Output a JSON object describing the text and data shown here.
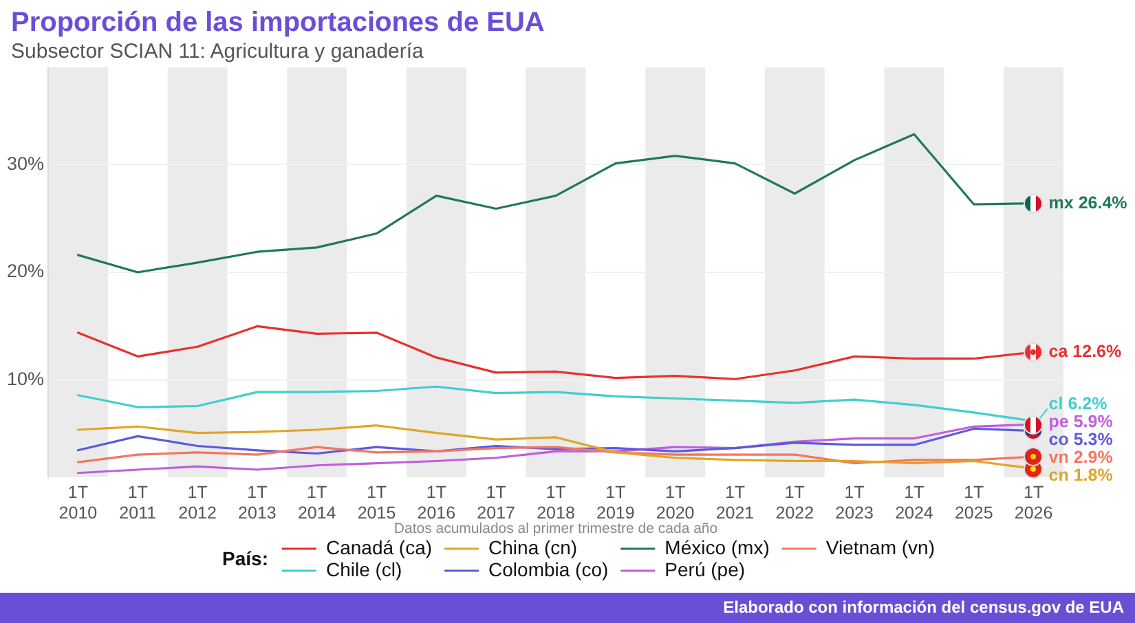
{
  "chart_data": {
    "type": "line",
    "title": "Proporción de las importaciones de EUA",
    "subtitle": "Subsector SCIAN 11: Agricultura y ganadería",
    "xlabel": "Datos acumulados al primer trimestre de cada año",
    "legend_title": "País:",
    "legend": "bottom",
    "grid": "y",
    "categories": [
      "1T\n2010",
      "1T\n2011",
      "1T\n2012",
      "1T\n2013",
      "1T\n2014",
      "1T\n2015",
      "1T\n2016",
      "1T\n2017",
      "1T\n2018",
      "1T\n2019",
      "1T\n2020",
      "1T\n2021",
      "1T\n2022",
      "1T\n2023",
      "1T\n2024",
      "1T\n2025",
      "1T\n2026"
    ],
    "ylim": [
      1,
      39
    ],
    "yticks": [
      {
        "value": 10,
        "label": "10%"
      },
      {
        "value": 20,
        "label": "20%"
      },
      {
        "value": 30,
        "label": "30%"
      }
    ],
    "bands": [
      {
        "axis": "x",
        "from": "1T\n2010",
        "to": "1T\n2010",
        "color": "#ebebeb"
      },
      {
        "axis": "x",
        "from": "1T\n2012",
        "to": "1T\n2012",
        "color": "#ebebeb"
      },
      {
        "axis": "x",
        "from": "1T\n2014",
        "to": "1T\n2014",
        "color": "#ebebeb"
      },
      {
        "axis": "x",
        "from": "1T\n2016",
        "to": "1T\n2016",
        "color": "#ebebeb"
      },
      {
        "axis": "x",
        "from": "1T\n2018",
        "to": "1T\n2018",
        "color": "#ebebeb"
      },
      {
        "axis": "x",
        "from": "1T\n2020",
        "to": "1T\n2020",
        "color": "#ebebeb"
      },
      {
        "axis": "x",
        "from": "1T\n2022",
        "to": "1T\n2022",
        "color": "#ebebeb"
      },
      {
        "axis": "x",
        "from": "1T\n2024",
        "to": "1T\n2024",
        "color": "#ebebeb"
      },
      {
        "axis": "x",
        "from": "1T\n2026",
        "to": "1T\n2026",
        "color": "#ebebeb"
      }
    ],
    "series": [
      {
        "name": "Canadá (ca)",
        "color": "#e8312f",
        "values": [
          14.4,
          12.2,
          13.1,
          15.0,
          14.3,
          14.4,
          12.1,
          10.7,
          10.8,
          10.2,
          10.4,
          10.1,
          10.9,
          12.2,
          12.0,
          12.0,
          12.6
        ],
        "value_labels": [
          null,
          null,
          null,
          null,
          null,
          null,
          null,
          null,
          null,
          null,
          null,
          null,
          null,
          null,
          null,
          null,
          "ca 12.6%"
        ]
      },
      {
        "name": "China (cn)",
        "color": "#e0a526",
        "values": [
          5.4,
          5.7,
          5.1,
          5.2,
          5.4,
          5.8,
          5.1,
          4.5,
          4.7,
          3.3,
          2.8,
          2.6,
          2.5,
          2.5,
          2.3,
          2.5,
          1.8
        ],
        "value_labels": [
          null,
          null,
          null,
          null,
          null,
          null,
          null,
          null,
          null,
          null,
          null,
          null,
          null,
          null,
          null,
          null,
          "cn 1.8%"
        ]
      },
      {
        "name": "México (mx)",
        "color": "#1f7a55",
        "values": [
          21.6,
          20.0,
          20.9,
          21.9,
          22.3,
          23.6,
          27.1,
          25.9,
          27.1,
          30.1,
          30.8,
          30.1,
          27.3,
          30.4,
          32.8,
          26.3,
          26.4
        ],
        "value_labels": [
          null,
          null,
          null,
          null,
          null,
          null,
          null,
          null,
          null,
          null,
          null,
          null,
          null,
          null,
          null,
          null,
          "mx 26.4%"
        ]
      },
      {
        "name": "Vietnam (vn)",
        "color": "#f4765f",
        "values": [
          2.4,
          3.1,
          3.3,
          3.1,
          3.8,
          3.3,
          3.4,
          3.7,
          3.8,
          3.3,
          3.1,
          3.1,
          3.1,
          2.3,
          2.6,
          2.6,
          2.9
        ],
        "value_labels": [
          null,
          null,
          null,
          null,
          null,
          null,
          null,
          null,
          null,
          null,
          null,
          null,
          null,
          null,
          null,
          null,
          "vn 2.9%"
        ]
      },
      {
        "name": "Chile (cl)",
        "color": "#3fcfd0",
        "values": [
          8.6,
          7.5,
          7.6,
          8.9,
          8.9,
          9.0,
          9.4,
          8.8,
          8.9,
          8.5,
          8.3,
          8.1,
          7.9,
          8.2,
          7.7,
          7.0,
          6.2
        ],
        "value_labels": [
          null,
          null,
          null,
          null,
          null,
          null,
          null,
          null,
          null,
          null,
          null,
          null,
          null,
          null,
          null,
          null,
          "cl 6.2%"
        ]
      },
      {
        "name": "Colombia (co)",
        "color": "#5b5bdc",
        "values": [
          3.5,
          4.8,
          3.9,
          3.5,
          3.2,
          3.8,
          3.4,
          3.9,
          3.6,
          3.7,
          3.4,
          3.7,
          4.2,
          4.0,
          4.0,
          5.5,
          5.3
        ],
        "value_labels": [
          null,
          null,
          null,
          null,
          null,
          null,
          null,
          null,
          null,
          null,
          null,
          null,
          null,
          null,
          null,
          null,
          "co 5.3%"
        ]
      },
      {
        "name": "Perú (pe)",
        "color": "#bf5fe0",
        "values": [
          1.4,
          1.7,
          2.0,
          1.7,
          2.1,
          2.3,
          2.5,
          2.8,
          3.4,
          3.4,
          3.8,
          3.7,
          4.3,
          4.6,
          4.6,
          5.7,
          5.9
        ],
        "value_labels": [
          null,
          null,
          null,
          null,
          null,
          null,
          null,
          null,
          null,
          null,
          null,
          null,
          null,
          null,
          null,
          null,
          "pe 5.9%"
        ]
      }
    ],
    "annotations": [
      "Elaborado con información del census.gov de EUA"
    ]
  }
}
